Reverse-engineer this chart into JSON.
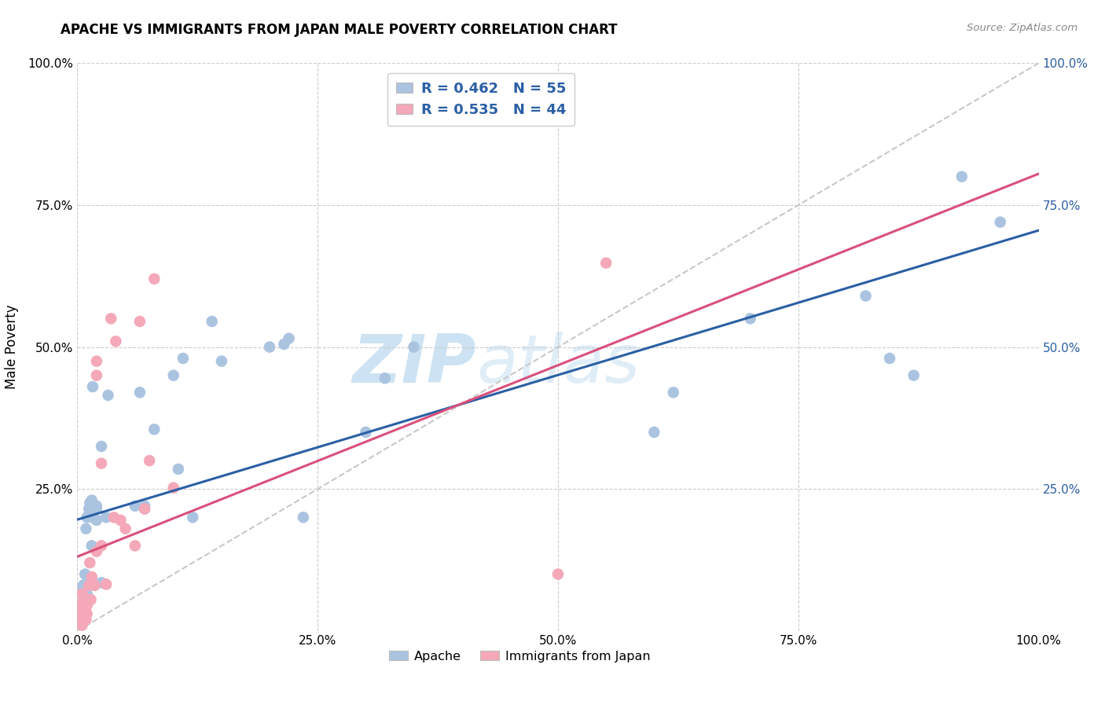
{
  "title": "APACHE VS IMMIGRANTS FROM JAPAN MALE POVERTY CORRELATION CHART",
  "source": "Source: ZipAtlas.com",
  "ylabel": "Male Poverty",
  "xlim": [
    0,
    1.0
  ],
  "ylim": [
    0,
    1.0
  ],
  "xtick_vals": [
    0.0,
    0.25,
    0.5,
    0.75,
    1.0
  ],
  "xtick_labels": [
    "0.0%",
    "25.0%",
    "50.0%",
    "75.0%",
    "100.0%"
  ],
  "ytick_vals": [
    0.0,
    0.25,
    0.5,
    0.75,
    1.0
  ],
  "ytick_labels": [
    "",
    "25.0%",
    "50.0%",
    "75.0%",
    "100.0%"
  ],
  "right_ytick_vals": [
    0.25,
    0.5,
    0.75,
    1.0
  ],
  "right_ytick_labels": [
    "25.0%",
    "50.0%",
    "75.0%",
    "100.0%"
  ],
  "legend_r1": "R = 0.462",
  "legend_n1": "N = 55",
  "legend_r2": "R = 0.535",
  "legend_n2": "N = 44",
  "apache_color": "#aac4e0",
  "japan_color": "#f4a8b8",
  "trendline_apache_color": "#2b5fa5",
  "trendline_japan_color": "#d9507a",
  "diagonal_color": "#c8c8c8",
  "background_color": "#ffffff",
  "grid_color": "#cccccc",
  "apache_x": [
    0.005,
    0.005,
    0.006,
    0.006,
    0.007,
    0.007,
    0.008,
    0.008,
    0.008,
    0.009,
    0.009,
    0.01,
    0.01,
    0.01,
    0.012,
    0.012,
    0.013,
    0.014,
    0.015,
    0.015,
    0.016,
    0.016,
    0.02,
    0.02,
    0.02,
    0.025,
    0.025,
    0.03,
    0.032,
    0.06,
    0.065,
    0.07,
    0.07,
    0.08,
    0.1,
    0.105,
    0.11,
    0.12,
    0.14,
    0.15,
    0.2,
    0.215,
    0.22,
    0.235,
    0.3,
    0.32,
    0.35,
    0.6,
    0.62,
    0.7,
    0.82,
    0.845,
    0.87,
    0.92,
    0.96
  ],
  "apache_y": [
    0.03,
    0.05,
    0.07,
    0.08,
    0.055,
    0.075,
    0.08,
    0.1,
    0.04,
    0.06,
    0.18,
    0.065,
    0.085,
    0.2,
    0.08,
    0.215,
    0.225,
    0.095,
    0.15,
    0.23,
    0.2,
    0.43,
    0.215,
    0.22,
    0.195,
    0.085,
    0.325,
    0.2,
    0.415,
    0.22,
    0.42,
    0.22,
    0.215,
    0.355,
    0.45,
    0.285,
    0.48,
    0.2,
    0.545,
    0.475,
    0.5,
    0.505,
    0.515,
    0.2,
    0.35,
    0.445,
    0.5,
    0.35,
    0.42,
    0.55,
    0.59,
    0.48,
    0.45,
    0.8,
    0.72
  ],
  "japan_x": [
    0.004,
    0.004,
    0.004,
    0.005,
    0.005,
    0.005,
    0.005,
    0.005,
    0.005,
    0.005,
    0.006,
    0.006,
    0.007,
    0.007,
    0.008,
    0.009,
    0.009,
    0.01,
    0.01,
    0.011,
    0.012,
    0.013,
    0.014,
    0.015,
    0.018,
    0.02,
    0.02,
    0.02,
    0.025,
    0.025,
    0.03,
    0.035,
    0.038,
    0.04,
    0.045,
    0.05,
    0.06,
    0.065,
    0.07,
    0.075,
    0.08,
    0.1,
    0.5,
    0.55
  ],
  "japan_y": [
    0.015,
    0.025,
    0.035,
    0.01,
    0.02,
    0.025,
    0.03,
    0.04,
    0.05,
    0.065,
    0.015,
    0.03,
    0.025,
    0.04,
    0.03,
    0.02,
    0.045,
    0.03,
    0.045,
    0.055,
    0.08,
    0.12,
    0.055,
    0.095,
    0.08,
    0.14,
    0.45,
    0.475,
    0.15,
    0.295,
    0.082,
    0.55,
    0.2,
    0.51,
    0.195,
    0.18,
    0.15,
    0.545,
    0.215,
    0.3,
    0.62,
    0.252,
    0.1,
    0.648
  ]
}
